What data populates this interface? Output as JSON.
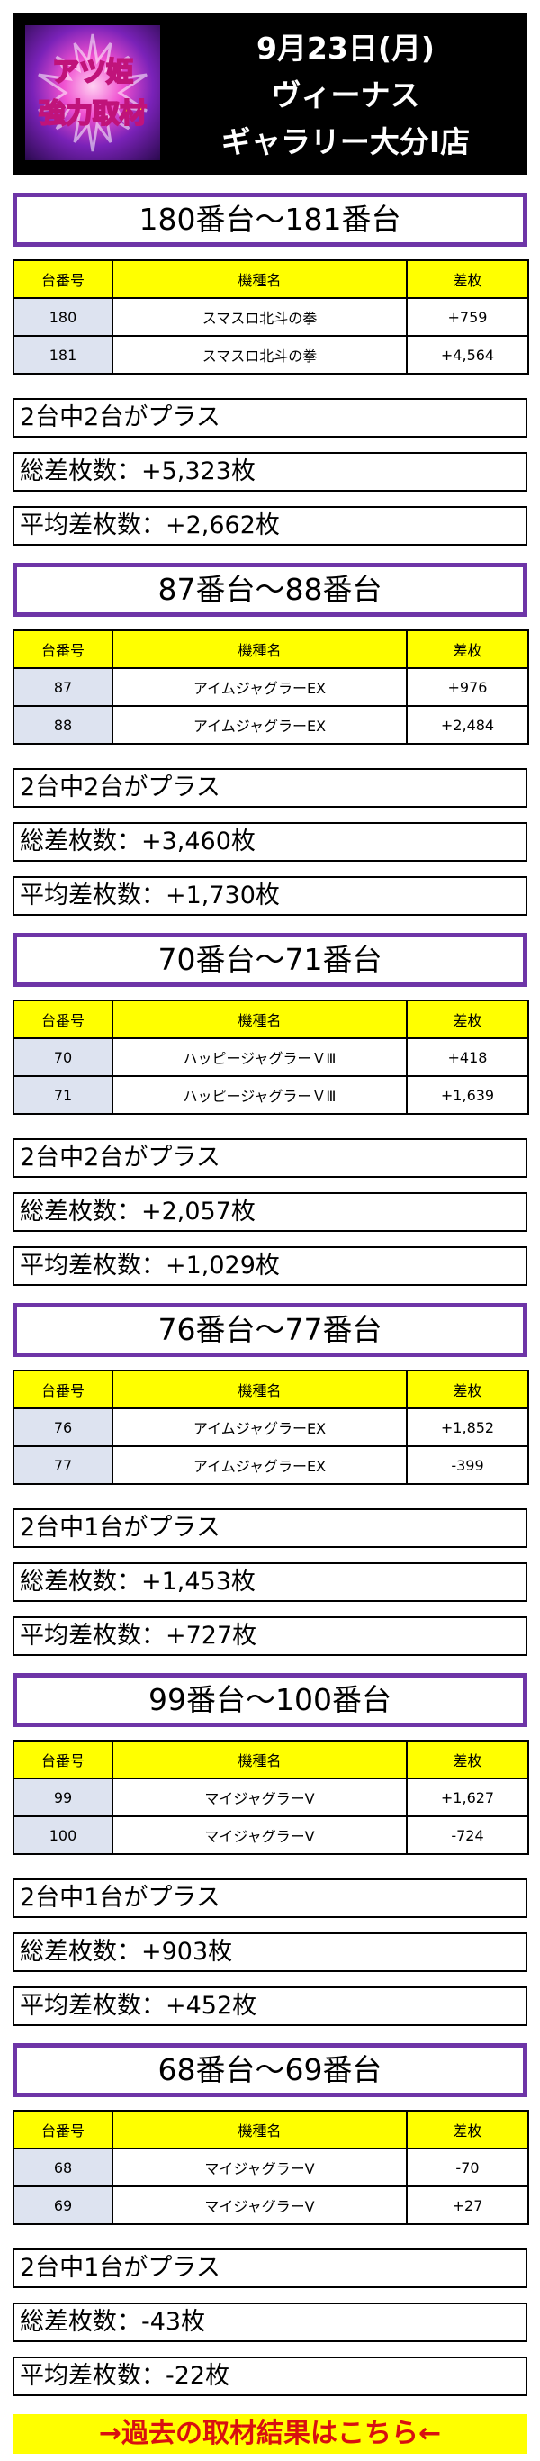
{
  "header": {
    "logo_text": "アツ姫 強力取材",
    "date": "9月23日(月)",
    "store_line1": "ヴィーナス",
    "store_line2": "ギャラリー大分Ⅰ店"
  },
  "table_headers": {
    "number": "台番号",
    "machine": "機種名",
    "diff": "差枚"
  },
  "sections": [
    {
      "title": "180番台～181番台",
      "rows": [
        {
          "number": "180",
          "machine": "スマスロ北斗の拳",
          "diff": "+759"
        },
        {
          "number": "181",
          "machine": "スマスロ北斗の拳",
          "diff": "+4,564"
        }
      ],
      "plus_summary": "2台中2台がプラス",
      "total": "総差枚数：+5,323枚",
      "average": "平均差枚数：+2,662枚"
    },
    {
      "title": "87番台～88番台",
      "rows": [
        {
          "number": "87",
          "machine": "アイムジャグラーEX",
          "diff": "+976"
        },
        {
          "number": "88",
          "machine": "アイムジャグラーEX",
          "diff": "+2,484"
        }
      ],
      "plus_summary": "2台中2台がプラス",
      "total": "総差枚数：+3,460枚",
      "average": "平均差枚数：+1,730枚"
    },
    {
      "title": "70番台～71番台",
      "rows": [
        {
          "number": "70",
          "machine": "ハッピージャグラーＶⅢ",
          "diff": "+418"
        },
        {
          "number": "71",
          "machine": "ハッピージャグラーＶⅢ",
          "diff": "+1,639"
        }
      ],
      "plus_summary": "2台中2台がプラス",
      "total": "総差枚数：+2,057枚",
      "average": "平均差枚数：+1,029枚"
    },
    {
      "title": "76番台～77番台",
      "rows": [
        {
          "number": "76",
          "machine": "アイムジャグラーEX",
          "diff": "+1,852"
        },
        {
          "number": "77",
          "machine": "アイムジャグラーEX",
          "diff": "-399"
        }
      ],
      "plus_summary": "2台中1台がプラス",
      "total": "総差枚数：+1,453枚",
      "average": "平均差枚数：+727枚"
    },
    {
      "title": "99番台～100番台",
      "rows": [
        {
          "number": "99",
          "machine": "マイジャグラーV",
          "diff": "+1,627"
        },
        {
          "number": "100",
          "machine": "マイジャグラーV",
          "diff": "-724"
        }
      ],
      "plus_summary": "2台中1台がプラス",
      "total": "総差枚数：+903枚",
      "average": "平均差枚数：+452枚"
    },
    {
      "title": "68番台～69番台",
      "rows": [
        {
          "number": "68",
          "machine": "マイジャグラーV",
          "diff": "-70"
        },
        {
          "number": "69",
          "machine": "マイジャグラーV",
          "diff": "+27"
        }
      ],
      "plus_summary": "2台中1台がプラス",
      "total": "総差枚数：-43枚",
      "average": "平均差枚数：-22枚"
    }
  ],
  "footer_link": "→過去の取材結果はこちら←",
  "colors": {
    "section_border": "#6e35a7",
    "header_bg": "#000000",
    "table_header_bg": "#ffff00",
    "number_cell_bg": "#dde3f0",
    "footer_bg": "#ffff00",
    "footer_text": "#d81010"
  }
}
